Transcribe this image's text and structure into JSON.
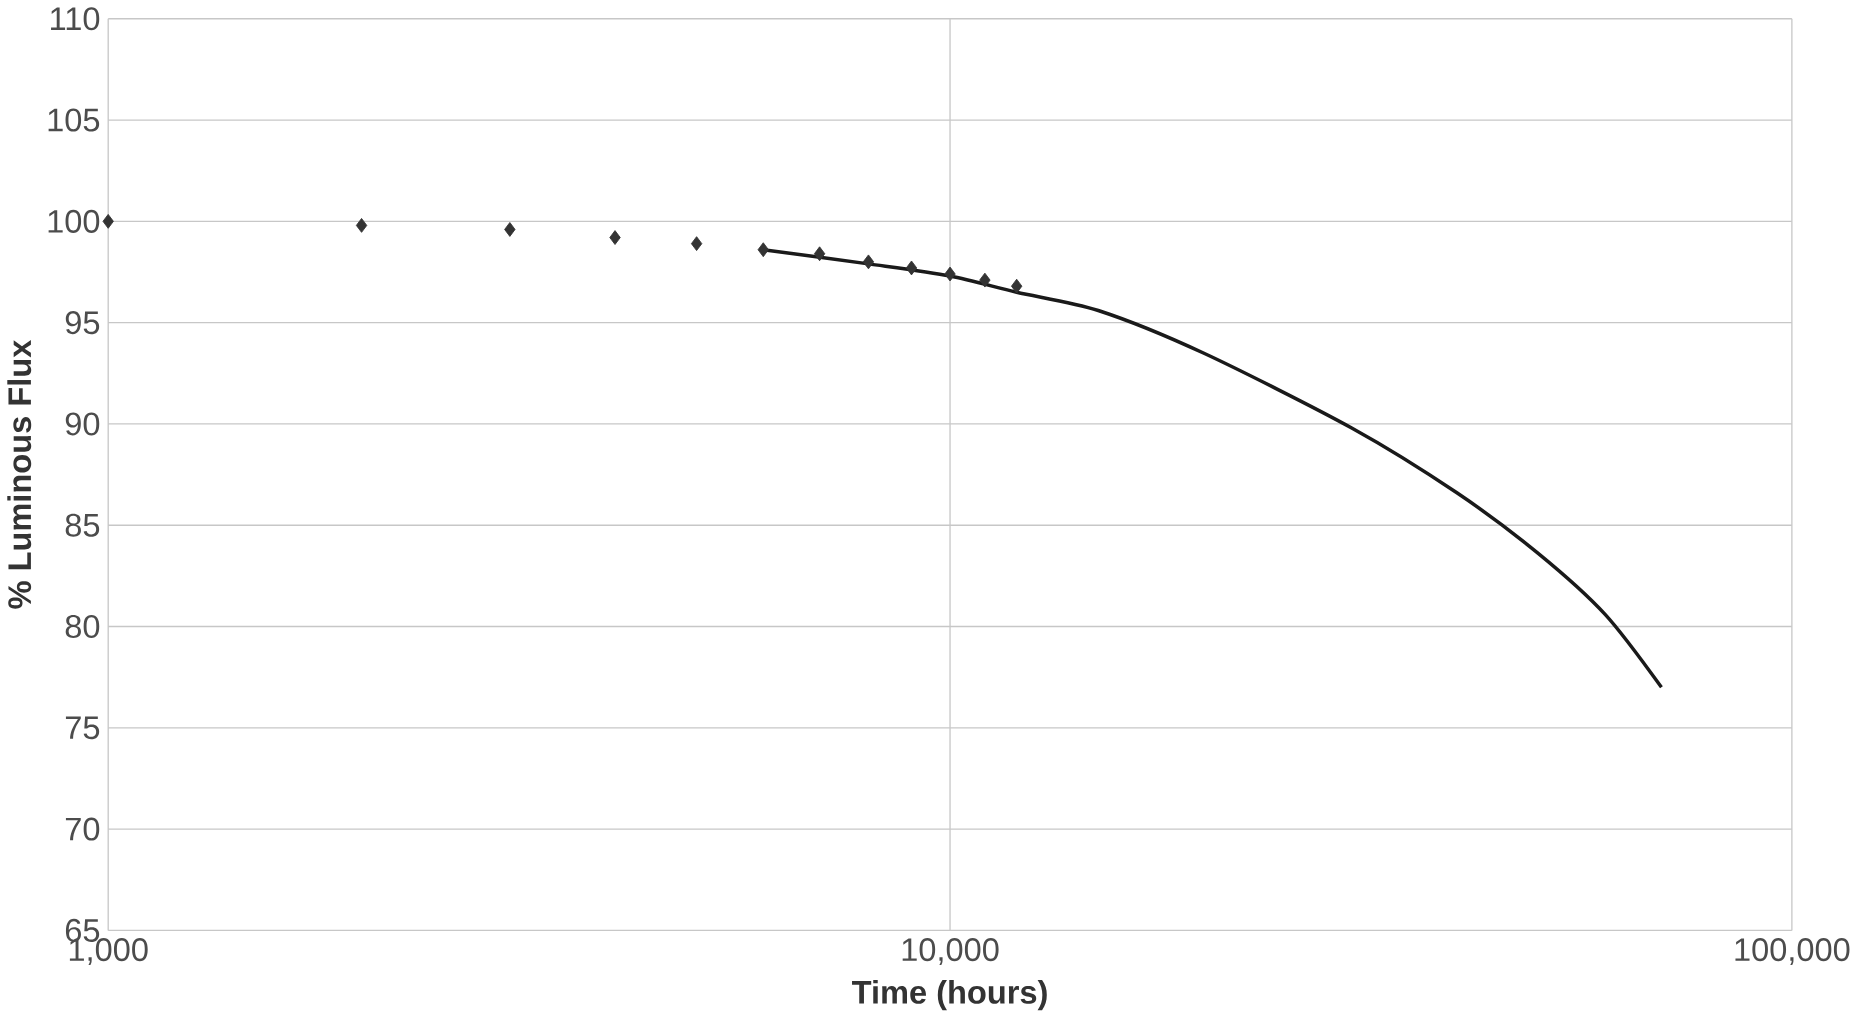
{
  "chart_data": {
    "type": "scatter",
    "xlabel": "Time (hours)",
    "ylabel": "% Luminous Flux",
    "log": "x",
    "grid": true,
    "xlim": [
      1000,
      100000
    ],
    "ylim": [
      65,
      110
    ],
    "xticks": [
      {
        "value": 1000,
        "label": "1,000"
      },
      {
        "value": 10000,
        "label": "10,000"
      },
      {
        "value": 100000,
        "label": "100,000"
      }
    ],
    "yticks": [
      65,
      70,
      75,
      80,
      85,
      90,
      95,
      100,
      105,
      110
    ],
    "series": [
      {
        "marker": "diamond",
        "color": "#333333",
        "x": [
          1000,
          2000,
          3000,
          4000,
          5000,
          6000,
          7000,
          8000,
          9000,
          10000,
          11000,
          12000
        ],
        "values": [
          100.0,
          99.8,
          99.6,
          99.2,
          98.9,
          98.6,
          98.4,
          98.0,
          97.7,
          97.4,
          97.1,
          96.8
        ]
      },
      {
        "type": "line",
        "marker": "none",
        "line_style": "solid",
        "color": "#1a1a1a",
        "x": [
          6000,
          8000,
          10000,
          12000,
          15000,
          20000,
          30000,
          40000,
          50000,
          60000,
          70000
        ],
        "values": [
          98.6,
          97.9,
          97.3,
          96.5,
          95.6,
          93.5,
          89.8,
          86.6,
          83.6,
          80.6,
          77.0
        ]
      }
    ]
  }
}
